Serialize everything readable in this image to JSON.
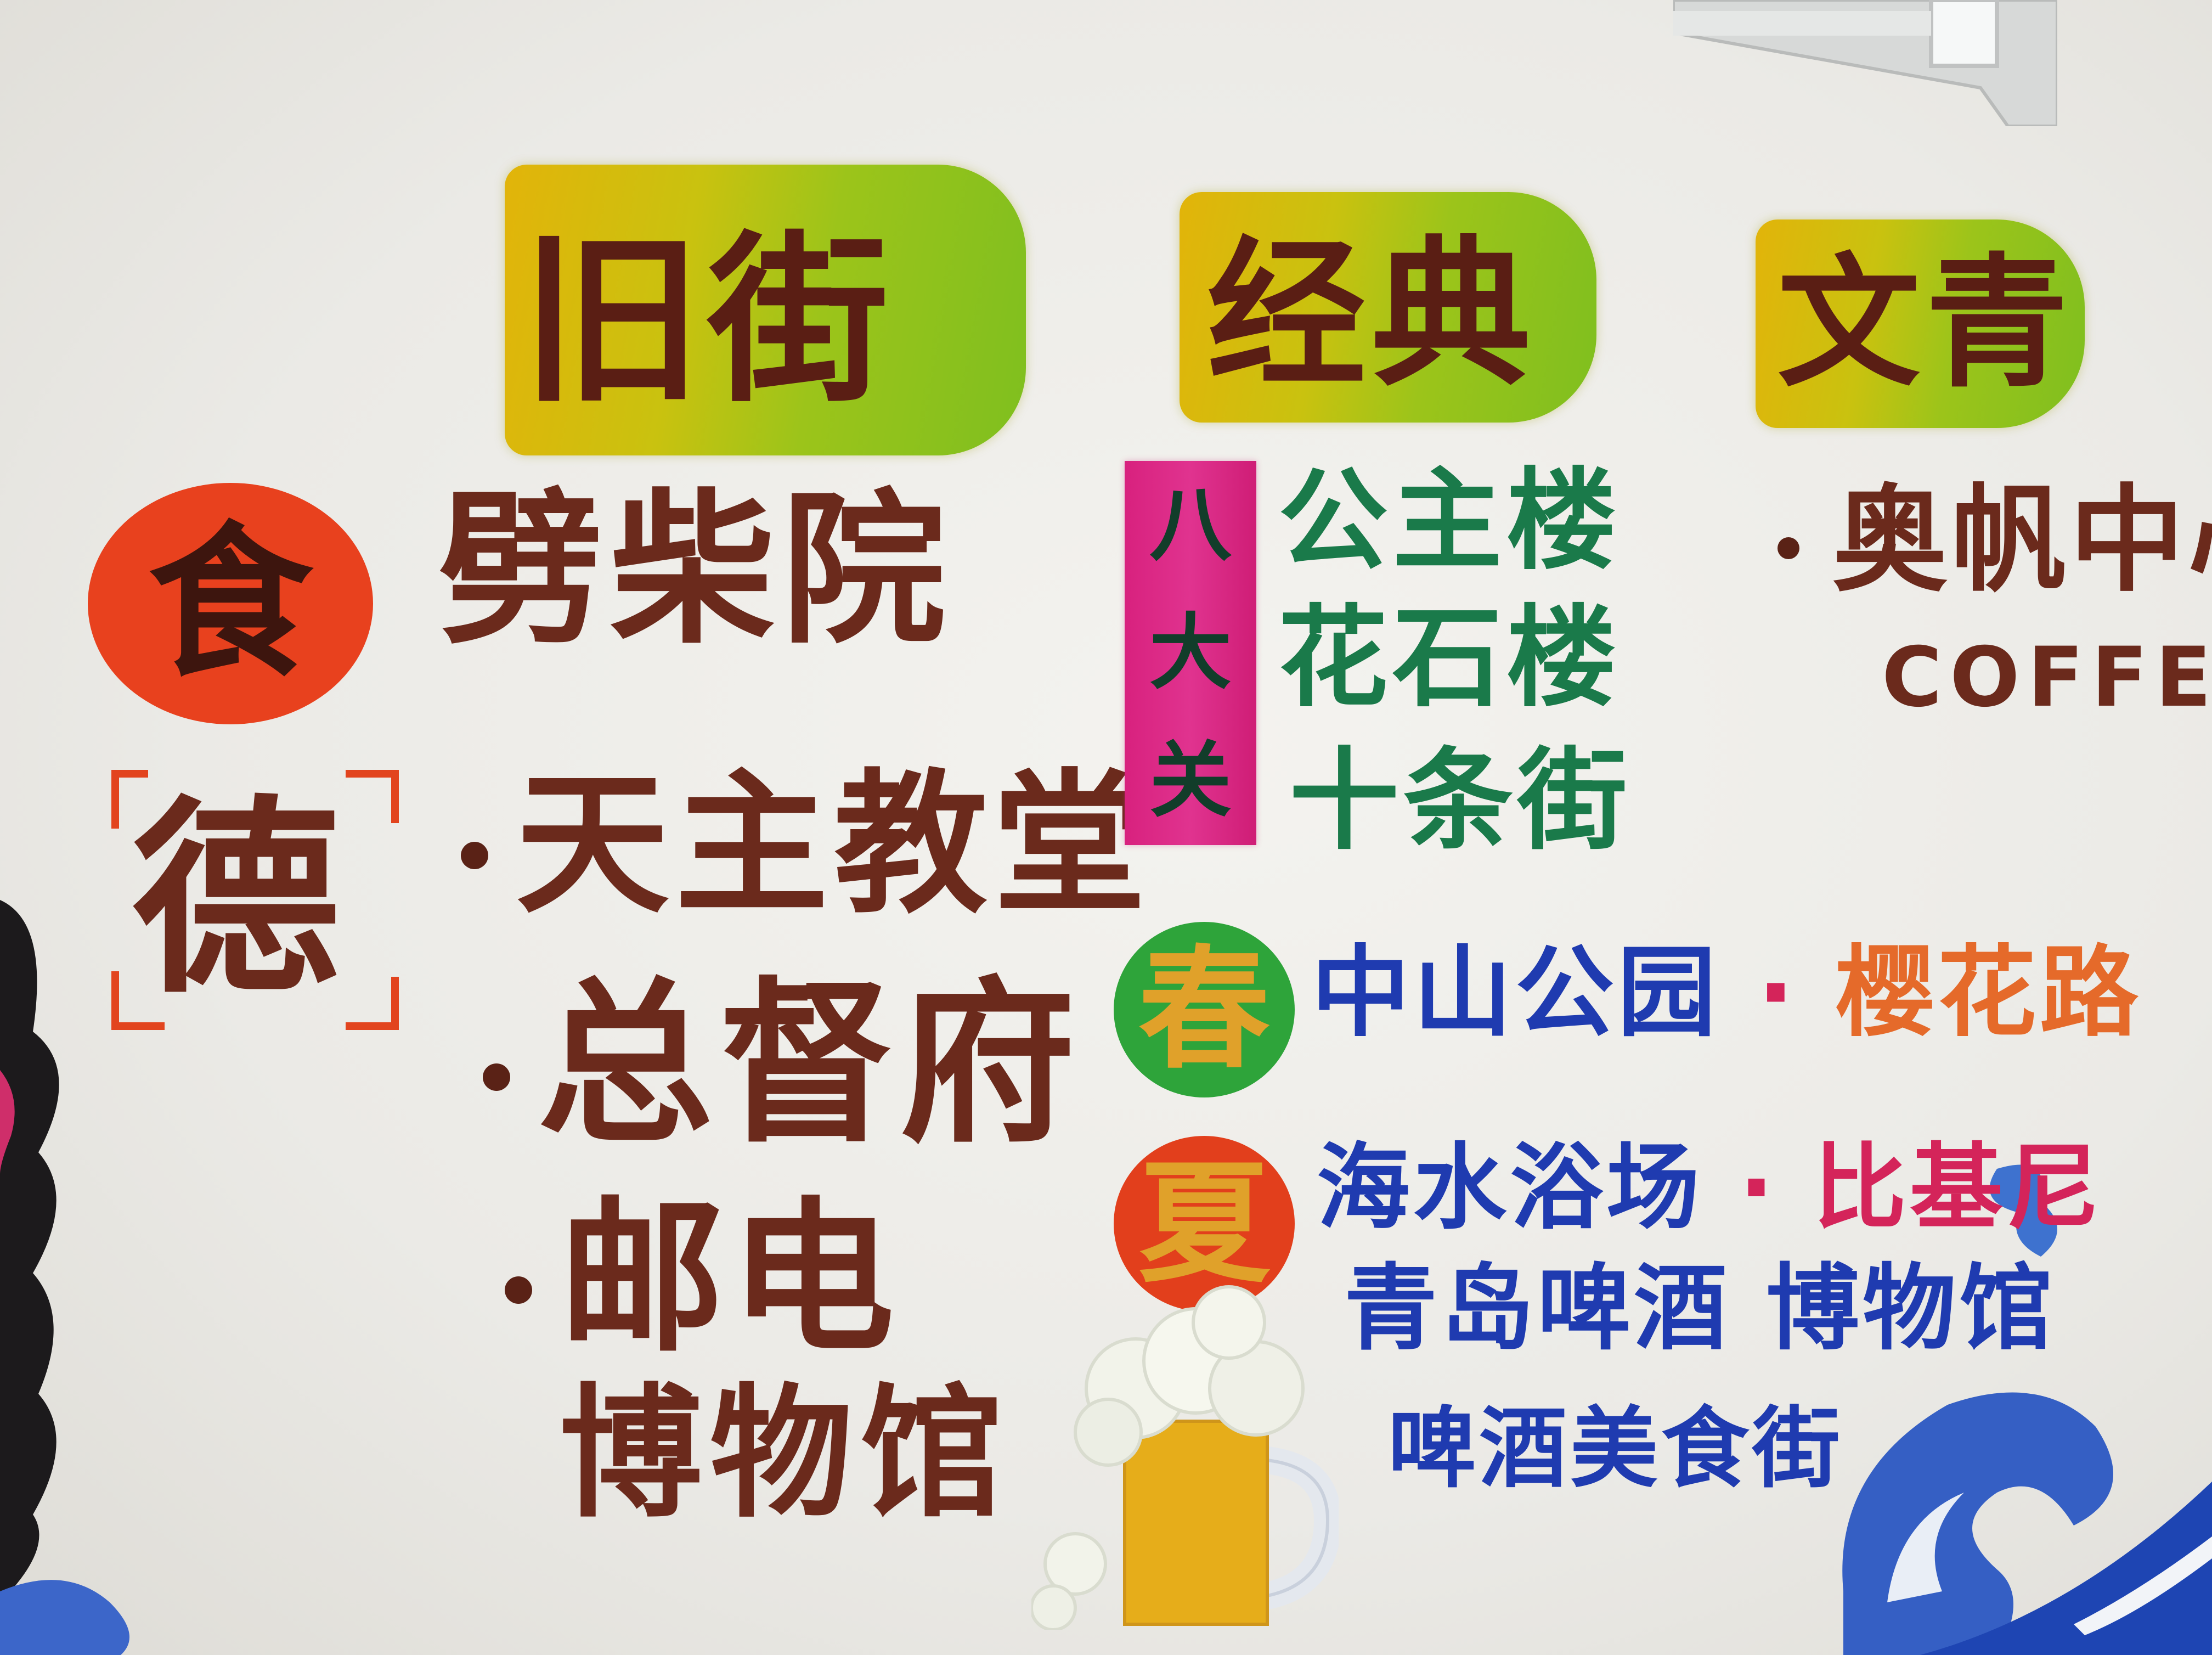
{
  "banners": {
    "old_street": "旧街",
    "classic": "经典",
    "artsy": "文青"
  },
  "old_street_section": {
    "food_badge": "食",
    "food_item": "劈柴院",
    "german_badge": "德",
    "items": [
      "天主教堂",
      "总督府",
      "邮电"
    ],
    "museum_suffix": "博物馆"
  },
  "classic_section": {
    "eight_passes_label": [
      "八",
      "大",
      "关"
    ],
    "buildings": [
      "公主楼",
      "花石楼",
      "十条街"
    ],
    "spring_badge": "春",
    "spring_places": {
      "park": "中山公园",
      "sep": "·",
      "road": "樱花路"
    },
    "summer_badge": "夏",
    "summer_places": {
      "beach": "海水浴场",
      "sep": "·",
      "bikini": "比基尼"
    },
    "beer_lines": [
      "青岛啤酒 博物馆",
      "啤酒美食街"
    ]
  },
  "artsy_section": {
    "item": "奥帆中心",
    "coffee": "COFFEE"
  },
  "colors": {
    "brown_ink": "#6b2a1c",
    "food_circle": "#e8411e",
    "spring_circle": "#2ea43a",
    "summer_circle": "#e23f1c",
    "eight_badge": "#d8217e",
    "green_ink": "#1a7a4a",
    "blue_ink": "#1f3bb0",
    "pink_ink": "#d4245a",
    "orange_ink": "#e56a2a"
  }
}
